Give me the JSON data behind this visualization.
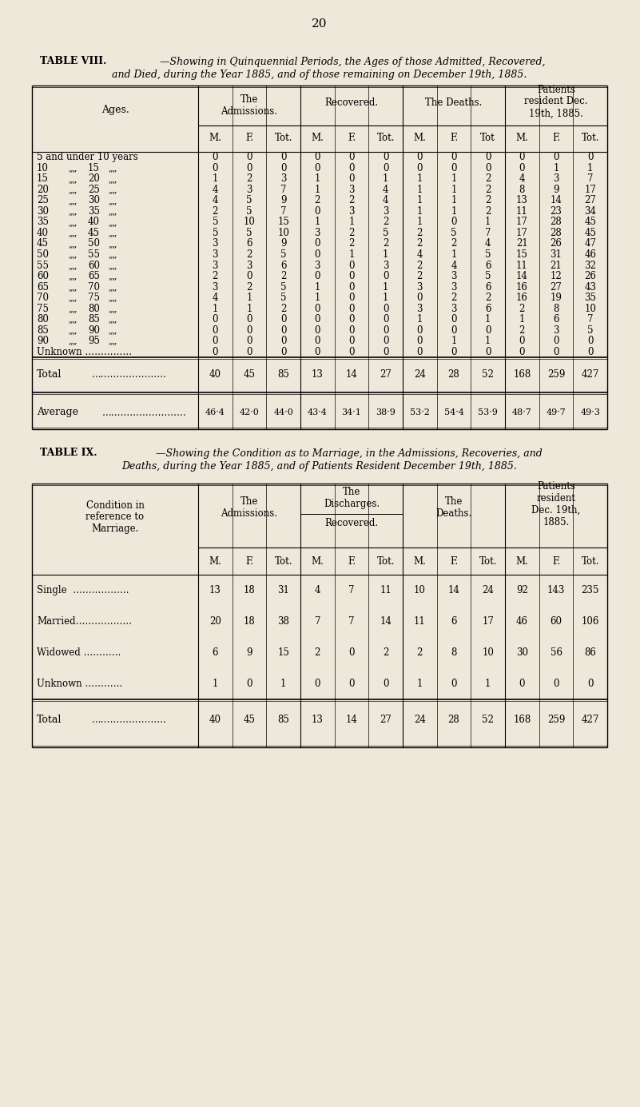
{
  "page_number": "20",
  "bg_color": "#ede8da",
  "table8_title_bold": "TABLE VIII.",
  "table8_title_italic": "—Showing in Quinquennial Periods, the Ages of those Admitted, Recovered,",
  "table8_title2": "and Died, during the Year 1885, and of those remaining on December 19th, 1885.",
  "table8_sub_headers": [
    "M.",
    "F.",
    "Tot.",
    "M.",
    "F.",
    "Tot.",
    "M.",
    "F.",
    "Tot",
    "M.",
    "F.",
    "Tot."
  ],
  "table8_data": [
    [
      0,
      0,
      0,
      0,
      0,
      0,
      0,
      0,
      0,
      0,
      0,
      0
    ],
    [
      0,
      0,
      0,
      0,
      0,
      0,
      0,
      0,
      0,
      0,
      1,
      1
    ],
    [
      1,
      2,
      3,
      1,
      0,
      1,
      1,
      1,
      2,
      4,
      3,
      7
    ],
    [
      4,
      3,
      7,
      1,
      3,
      4,
      1,
      1,
      2,
      8,
      9,
      17
    ],
    [
      4,
      5,
      9,
      2,
      2,
      4,
      1,
      1,
      2,
      13,
      14,
      27
    ],
    [
      2,
      5,
      7,
      0,
      3,
      3,
      1,
      1,
      2,
      11,
      23,
      34
    ],
    [
      5,
      10,
      15,
      1,
      1,
      2,
      1,
      0,
      1,
      17,
      28,
      45
    ],
    [
      5,
      5,
      10,
      3,
      2,
      5,
      2,
      5,
      7,
      17,
      28,
      45
    ],
    [
      3,
      6,
      9,
      0,
      2,
      2,
      2,
      2,
      4,
      21,
      26,
      47
    ],
    [
      3,
      2,
      5,
      0,
      1,
      1,
      4,
      1,
      5,
      15,
      31,
      46
    ],
    [
      3,
      3,
      6,
      3,
      0,
      3,
      2,
      4,
      6,
      11,
      21,
      32
    ],
    [
      2,
      0,
      2,
      0,
      0,
      0,
      2,
      3,
      5,
      14,
      12,
      26
    ],
    [
      3,
      2,
      5,
      1,
      0,
      1,
      3,
      3,
      6,
      16,
      27,
      43
    ],
    [
      4,
      1,
      5,
      1,
      0,
      1,
      0,
      2,
      2,
      16,
      19,
      35
    ],
    [
      1,
      1,
      2,
      0,
      0,
      0,
      3,
      3,
      6,
      2,
      8,
      10
    ],
    [
      0,
      0,
      0,
      0,
      0,
      0,
      1,
      0,
      1,
      1,
      6,
      7
    ],
    [
      0,
      0,
      0,
      0,
      0,
      0,
      0,
      0,
      0,
      2,
      3,
      5
    ],
    [
      0,
      0,
      0,
      0,
      0,
      0,
      0,
      1,
      1,
      0,
      0,
      0
    ],
    [
      0,
      0,
      0,
      0,
      0,
      0,
      0,
      0,
      0,
      0,
      0,
      0
    ]
  ],
  "table8_total": [
    40,
    45,
    85,
    13,
    14,
    27,
    24,
    28,
    52,
    168,
    259,
    427
  ],
  "table8_avg": [
    "46·4",
    "42·0",
    "44·0",
    "43·4",
    "34·1",
    "38·9",
    "53·2",
    "54·4",
    "53·9",
    "48·7",
    "49·7",
    "49·3"
  ],
  "table9_title_bold": "TABLE IX.",
  "table9_title_italic": "—Showing the Condition as to Marriage, in the Admissions, Recoveries, and",
  "table9_title2": "Deaths, during the Year 1885, and of Patients Resident December 19th, 1885.",
  "table9_sub_headers": [
    "M.",
    "F.",
    "Tot.",
    "M.",
    "F.",
    "Tot.",
    "M.",
    "F.",
    "Tot.",
    "M.",
    "F.",
    "Tot."
  ],
  "table9_data": [
    [
      13,
      18,
      31,
      4,
      7,
      11,
      10,
      14,
      24,
      92,
      143,
      235
    ],
    [
      20,
      18,
      38,
      7,
      7,
      14,
      11,
      6,
      17,
      46,
      60,
      106
    ],
    [
      6,
      9,
      15,
      2,
      0,
      2,
      2,
      8,
      10,
      30,
      56,
      86
    ],
    [
      1,
      0,
      1,
      0,
      0,
      0,
      1,
      0,
      1,
      0,
      0,
      0
    ]
  ],
  "table9_total": [
    40,
    45,
    85,
    13,
    14,
    27,
    24,
    28,
    52,
    168,
    259,
    427
  ]
}
